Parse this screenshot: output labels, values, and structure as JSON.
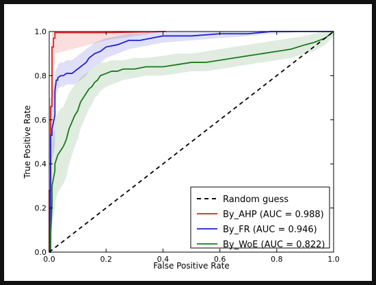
{
  "chart_data": {
    "type": "line",
    "title": "",
    "xlabel": "False Positive Rate",
    "ylabel": "True Positive Rate",
    "xlim": [
      0.0,
      1.0
    ],
    "ylim": [
      0.0,
      1.0
    ],
    "x_ticks": [
      "0.0",
      "0.2",
      "0.4",
      "0.6",
      "0.8",
      "1.0"
    ],
    "y_ticks": [
      "0.0",
      "0.2",
      "0.4",
      "0.6",
      "0.8",
      "1.0"
    ],
    "grid": false,
    "legend_position": "bottom-right",
    "series": [
      {
        "name": "Random guess",
        "color": "#000000",
        "style": "dashed",
        "x": [
          0.0,
          1.0
        ],
        "y": [
          0.0,
          1.0
        ]
      },
      {
        "name": "By_AHP (AUC = 0.988)",
        "color": "#e41a1c",
        "style": "solid",
        "x": [
          0.0,
          0.0,
          0.005,
          0.005,
          0.01,
          0.01,
          0.015,
          0.015,
          0.02,
          0.02,
          0.2,
          0.41
        ],
        "y": [
          0.0,
          0.28,
          0.28,
          0.66,
          0.66,
          0.93,
          0.93,
          0.97,
          0.97,
          0.995,
          0.995,
          1.0
        ],
        "band_upper": [
          0.2,
          0.7,
          0.7,
          0.95,
          0.95,
          1.0,
          1.0,
          1.0,
          1.0,
          1.0,
          1.0,
          1.0
        ],
        "band_lower": [
          0.0,
          0.0,
          0.0,
          0.3,
          0.3,
          0.7,
          0.7,
          0.85,
          0.85,
          0.9,
          0.96,
          1.0
        ]
      },
      {
        "name": "By_FR (AUC = 0.946)",
        "color": "#1f1fd8",
        "style": "solid",
        "x": [
          0.0,
          0.005,
          0.005,
          0.01,
          0.01,
          0.02,
          0.02,
          0.025,
          0.03,
          0.03,
          0.04,
          0.05,
          0.06,
          0.08,
          0.09,
          0.1,
          0.12,
          0.13,
          0.14,
          0.15,
          0.16,
          0.18,
          0.2,
          0.24,
          0.28,
          0.32,
          0.36,
          0.4,
          0.5,
          0.6,
          0.7,
          0.78,
          0.8,
          0.9,
          1.0
        ],
        "y": [
          0.0,
          0.0,
          0.53,
          0.53,
          0.56,
          0.62,
          0.73,
          0.78,
          0.78,
          0.79,
          0.8,
          0.8,
          0.81,
          0.81,
          0.82,
          0.83,
          0.85,
          0.86,
          0.88,
          0.89,
          0.9,
          0.91,
          0.93,
          0.94,
          0.96,
          0.96,
          0.97,
          0.98,
          0.98,
          0.99,
          0.99,
          1.0,
          1.0,
          1.0,
          1.0
        ],
        "band_upper": [
          0.2,
          0.2,
          0.7,
          0.7,
          0.72,
          0.78,
          0.82,
          0.83,
          0.84,
          0.85,
          0.86,
          0.86,
          0.87,
          0.87,
          0.88,
          0.89,
          0.91,
          0.92,
          0.93,
          0.94,
          0.95,
          0.96,
          0.97,
          0.98,
          0.99,
          0.99,
          1.0,
          1.0,
          1.0,
          1.0,
          1.0,
          1.0,
          1.0,
          1.0,
          1.0
        ],
        "band_lower": [
          0.0,
          0.0,
          0.4,
          0.4,
          0.42,
          0.48,
          0.62,
          0.72,
          0.73,
          0.74,
          0.75,
          0.75,
          0.76,
          0.76,
          0.76,
          0.77,
          0.79,
          0.8,
          0.82,
          0.83,
          0.84,
          0.86,
          0.88,
          0.9,
          0.92,
          0.93,
          0.94,
          0.95,
          0.96,
          0.97,
          0.98,
          0.99,
          0.99,
          1.0,
          1.0
        ]
      },
      {
        "name": "By_WoE (AUC = 0.822)",
        "color": "#1a7a1a",
        "style": "solid",
        "x": [
          0.0,
          0.005,
          0.005,
          0.01,
          0.01,
          0.02,
          0.02,
          0.03,
          0.04,
          0.05,
          0.06,
          0.07,
          0.08,
          0.09,
          0.1,
          0.11,
          0.12,
          0.13,
          0.14,
          0.15,
          0.16,
          0.17,
          0.18,
          0.2,
          0.22,
          0.24,
          0.26,
          0.3,
          0.34,
          0.4,
          0.45,
          0.5,
          0.55,
          0.6,
          0.65,
          0.7,
          0.75,
          0.8,
          0.85,
          0.9,
          0.93,
          0.97,
          1.0
        ],
        "y": [
          0.0,
          0.0,
          0.08,
          0.22,
          0.3,
          0.37,
          0.4,
          0.44,
          0.46,
          0.48,
          0.51,
          0.56,
          0.59,
          0.62,
          0.64,
          0.68,
          0.7,
          0.72,
          0.74,
          0.75,
          0.77,
          0.78,
          0.8,
          0.81,
          0.82,
          0.82,
          0.83,
          0.83,
          0.84,
          0.84,
          0.85,
          0.86,
          0.86,
          0.87,
          0.88,
          0.89,
          0.9,
          0.91,
          0.92,
          0.94,
          0.95,
          0.97,
          1.0
        ],
        "band_upper": [
          0.15,
          0.15,
          0.3,
          0.42,
          0.5,
          0.56,
          0.6,
          0.63,
          0.65,
          0.66,
          0.69,
          0.72,
          0.74,
          0.76,
          0.77,
          0.79,
          0.8,
          0.81,
          0.82,
          0.83,
          0.84,
          0.85,
          0.86,
          0.86,
          0.87,
          0.87,
          0.87,
          0.88,
          0.88,
          0.89,
          0.9,
          0.9,
          0.91,
          0.92,
          0.93,
          0.94,
          0.95,
          0.96,
          0.97,
          0.98,
          0.99,
          1.0,
          1.0
        ],
        "band_lower": [
          0.0,
          0.0,
          0.0,
          0.05,
          0.12,
          0.2,
          0.23,
          0.27,
          0.29,
          0.31,
          0.34,
          0.4,
          0.44,
          0.48,
          0.51,
          0.56,
          0.59,
          0.62,
          0.65,
          0.67,
          0.7,
          0.71,
          0.73,
          0.75,
          0.76,
          0.77,
          0.78,
          0.79,
          0.8,
          0.8,
          0.81,
          0.82,
          0.82,
          0.83,
          0.84,
          0.85,
          0.86,
          0.87,
          0.88,
          0.9,
          0.91,
          0.94,
          0.98
        ]
      }
    ]
  }
}
